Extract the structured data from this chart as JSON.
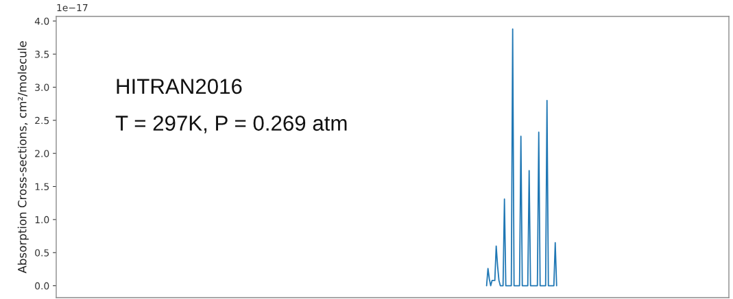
{
  "chart_data": {
    "type": "line",
    "ylabel": "Absorption Cross-sections, cm²/molecule",
    "annotations": [
      "1e−17",
      "HITRAN2016",
      "T = 297K, P = 0.269 atm"
    ],
    "categories": [
      null,
      null,
      null,
      null,
      null,
      null,
      null,
      null,
      null,
      null,
      null,
      null,
      null,
      null,
      null,
      null,
      null,
      null,
      null,
      null,
      null,
      null,
      null,
      null,
      null,
      null,
      null,
      null,
      null,
      null,
      null,
      null,
      null,
      null,
      null,
      null,
      null,
      null,
      null,
      null,
      null,
      null,
      null,
      null,
      null,
      null,
      null,
      null,
      null,
      null,
      null,
      null,
      null,
      null,
      null,
      null,
      null,
      null,
      null,
      null,
      null,
      null,
      null,
      null,
      null,
      null,
      null,
      null,
      null,
      null,
      null,
      null,
      null,
      null,
      null,
      null,
      null,
      null,
      null,
      null,
      null,
      null,
      null,
      null,
      null,
      null,
      null,
      null,
      null,
      null,
      null,
      null,
      null,
      null,
      null,
      null,
      null,
      null,
      null,
      null,
      null,
      null,
      null,
      null,
      null,
      null,
      null,
      null,
      null,
      null,
      null,
      null,
      null,
      null,
      null,
      null,
      null,
      null,
      null,
      null,
      null,
      null,
      null,
      null,
      null,
      null,
      null,
      null,
      null,
      null,
      null,
      null,
      null,
      null,
      null,
      null,
      null,
      null,
      null,
      null,
      null,
      null,
      null,
      null,
      null,
      null,
      null,
      null,
      null,
      null,
      null,
      null,
      null,
      null,
      null,
      null,
      null,
      null,
      null,
      null,
      null,
      null,
      null,
      null,
      null,
      null,
      null,
      null,
      null,
      null,
      null,
      null,
      null,
      null,
      null,
      null,
      null,
      null,
      null,
      null,
      null,
      null,
      null,
      null,
      null,
      null,
      null,
      null,
      null,
      null,
      null,
      null,
      null,
      null,
      null,
      null,
      null,
      null,
      null,
      null,
      null,
      null,
      null,
      null,
      null,
      null,
      null,
      null,
      null,
      null,
      null,
      null,
      null,
      null,
      null,
      null,
      null,
      null,
      null,
      null,
      null,
      null,
      null,
      null,
      null,
      null,
      null,
      null,
      null,
      null,
      null,
      null,
      null,
      null,
      null,
      null,
      null,
      null,
      null,
      null,
      null,
      null,
      null,
      null,
      null,
      null,
      null,
      null,
      null,
      null,
      null,
      null,
      null,
      null,
      null,
      null,
      null,
      null,
      null,
      null,
      null,
      null,
      null,
      null,
      null,
      null,
      null,
      null,
      null,
      null,
      null,
      null,
      null,
      null,
      null,
      null,
      null,
      null,
      null,
      null,
      null,
      null,
      null,
      null,
      null,
      null,
      null,
      null,
      null,
      null,
      null,
      null,
      null,
      null,
      null,
      null,
      null,
      null,
      null,
      null,
      null,
      null,
      null,
      null,
      null,
      null,
      null,
      null,
      null,
      null,
      null,
      null,
      null,
      null,
      null,
      null,
      null,
      null,
      null,
      null,
      null,
      null,
      null,
      null,
      null,
      null,
      null,
      null,
      null,
      null,
      null,
      null,
      null,
      null,
      null,
      null,
      null,
      null,
      null,
      null,
      null,
      null,
      null,
      null,
      null,
      null,
      null,
      null,
      null,
      null,
      null,
      null,
      null,
      null,
      null,
      null,
      null,
      null,
      null,
      null,
      null,
      null,
      null,
      null,
      null,
      null,
      null,
      null,
      null,
      null,
      null,
      null,
      null,
      null,
      null,
      null,
      null,
      null,
      null,
      null,
      null,
      null,
      null,
      null,
      null,
      null,
      null,
      null,
      null,
      null,
      null,
      null,
      null,
      null,
      null,
      null,
      null,
      null,
      null,
      null,
      null,
      null,
      null,
      null,
      null,
      null,
      null,
      null,
      null,
      null,
      null,
      null,
      null,
      null,
      null,
      null,
      null,
      null,
      null,
      null,
      null,
      null,
      null,
      null,
      null,
      null,
      null,
      null,
      null,
      null,
      null,
      null,
      null,
      null,
      null,
      null,
      null,
      null,
      null,
      null,
      null,
      null,
      null,
      null,
      null,
      null,
      null,
      null,
      null,
      null,
      null,
      null,
      null,
      null,
      null,
      null,
      null,
      null,
      null,
      null,
      null,
      null,
      null,
      null,
      null,
      null,
      null,
      null,
      null,
      null,
      null,
      null,
      null,
      null,
      null,
      null,
      null,
      null,
      null,
      null,
      null,
      null,
      null,
      null,
      null,
      null,
      null,
      null,
      null,
      null
    ],
    "series": [
      {
        "color": "#1f77b4",
        "values": [
          null,
          null,
          null,
          null,
          null,
          null,
          null,
          null,
          null,
          null,
          null,
          null,
          null,
          null,
          null,
          null,
          null,
          null,
          null,
          null,
          null,
          null,
          null,
          null,
          null,
          null,
          null,
          null,
          null,
          null,
          null,
          null,
          null,
          null,
          null,
          null,
          null,
          null,
          null,
          null,
          null,
          null,
          null,
          null,
          null,
          null,
          null,
          null,
          null,
          null,
          null,
          null,
          null,
          null,
          null,
          null,
          null,
          null,
          null,
          null,
          null,
          null,
          null,
          null,
          null,
          null,
          null,
          null,
          null,
          null,
          null,
          null,
          null,
          null,
          null,
          null,
          null,
          null,
          null,
          null,
          null,
          null,
          null,
          null,
          null,
          null,
          null,
          null,
          null,
          null,
          null,
          null,
          null,
          null,
          null,
          null,
          null,
          null,
          null,
          null,
          null,
          null,
          null,
          null,
          null,
          null,
          null,
          null,
          null,
          null,
          null,
          null,
          null,
          null,
          null,
          null,
          null,
          null,
          null,
          null,
          null,
          null,
          null,
          null,
          null,
          null,
          null,
          null,
          null,
          null,
          null,
          null,
          null,
          null,
          null,
          null,
          null,
          null,
          null,
          null,
          null,
          null,
          null,
          null,
          null,
          null,
          null,
          null,
          null,
          null,
          null,
          null,
          null,
          null,
          null,
          null,
          null,
          null,
          null,
          null,
          null,
          null,
          null,
          null,
          null,
          null,
          null,
          null,
          null,
          null,
          null,
          null,
          null,
          null,
          null,
          null,
          null,
          null,
          null,
          null,
          null,
          null,
          null,
          null,
          null,
          null,
          null,
          null,
          null,
          null,
          null,
          null,
          null,
          null,
          null,
          null,
          null,
          null,
          null,
          null,
          null,
          null,
          null,
          null,
          null,
          null,
          null,
          null,
          null,
          null,
          null,
          null,
          null,
          null,
          null,
          null,
          null,
          null,
          null,
          null,
          null,
          null,
          null,
          null,
          null,
          null,
          null,
          null,
          null,
          null,
          null,
          null,
          null,
          null,
          null,
          null,
          null,
          null,
          null,
          null,
          null,
          null,
          null,
          null,
          null,
          null,
          null,
          null,
          null,
          null,
          null,
          null,
          null,
          null,
          null,
          null,
          null,
          null,
          null,
          null,
          null,
          null,
          null,
          null,
          null,
          null,
          null,
          null,
          null,
          null,
          null,
          null,
          null,
          null,
          null,
          null,
          null,
          null,
          null,
          null,
          null,
          null,
          null,
          null,
          null,
          null,
          null,
          null,
          null,
          null,
          null,
          null,
          null,
          null,
          null,
          null,
          null,
          null,
          null,
          null,
          null,
          null,
          null,
          null,
          null,
          null,
          null,
          null,
          null,
          null,
          null,
          null,
          null,
          0,
          0.26,
          0.1,
          0,
          0.08,
          0.08,
          0.08,
          0.6,
          0.3,
          0.08,
          0,
          0,
          0,
          1.31,
          0,
          0,
          0,
          0,
          0,
          3.88,
          0,
          0,
          0,
          0,
          0,
          2.26,
          0,
          0,
          0,
          0,
          0,
          1.74,
          0,
          0,
          0,
          0,
          0,
          0,
          2.32,
          0,
          0,
          0,
          0,
          0,
          2.8,
          0,
          0,
          0,
          0,
          0,
          0.65,
          0,
          null,
          null,
          null,
          null,
          null,
          null,
          null,
          null,
          null,
          null,
          null,
          null,
          null,
          null,
          null,
          null,
          null,
          null,
          null,
          null,
          null,
          null,
          null,
          null,
          null,
          null,
          null,
          null,
          null,
          null,
          null,
          null,
          null,
          null,
          null,
          null,
          null,
          null,
          null,
          null,
          null,
          null,
          null,
          null,
          null,
          null,
          null,
          null,
          null,
          null,
          null,
          null,
          null,
          null,
          null,
          null,
          null,
          null,
          null,
          null,
          null,
          null,
          null,
          null,
          null,
          null,
          null,
          null,
          null,
          null,
          null,
          null,
          null,
          null,
          null,
          null,
          null,
          null,
          null,
          null,
          null,
          null,
          null,
          null,
          null,
          null,
          null,
          null,
          null,
          null,
          null,
          null,
          null,
          null,
          null,
          null,
          null,
          null,
          null,
          null,
          null,
          null,
          null,
          null,
          null,
          null,
          null,
          null,
          null,
          null,
          null,
          null,
          null,
          null,
          null,
          null,
          null,
          null,
          null,
          null,
          null,
          null,
          null,
          null,
          null
        ]
      }
    ],
    "ylim": [
      -0.18,
      4.07
    ],
    "yticks": [
      {
        "value": 0,
        "label": "0.0"
      },
      0.5,
      {
        "value": 1,
        "label": "1.0"
      },
      1.5,
      {
        "value": 2,
        "label": "2.0"
      },
      2.5,
      {
        "value": 3,
        "label": "3.0"
      },
      3.5,
      {
        "value": 4,
        "label": "4.0"
      }
    ],
    "tick_labels": "y",
    "line_style": "solid"
  }
}
